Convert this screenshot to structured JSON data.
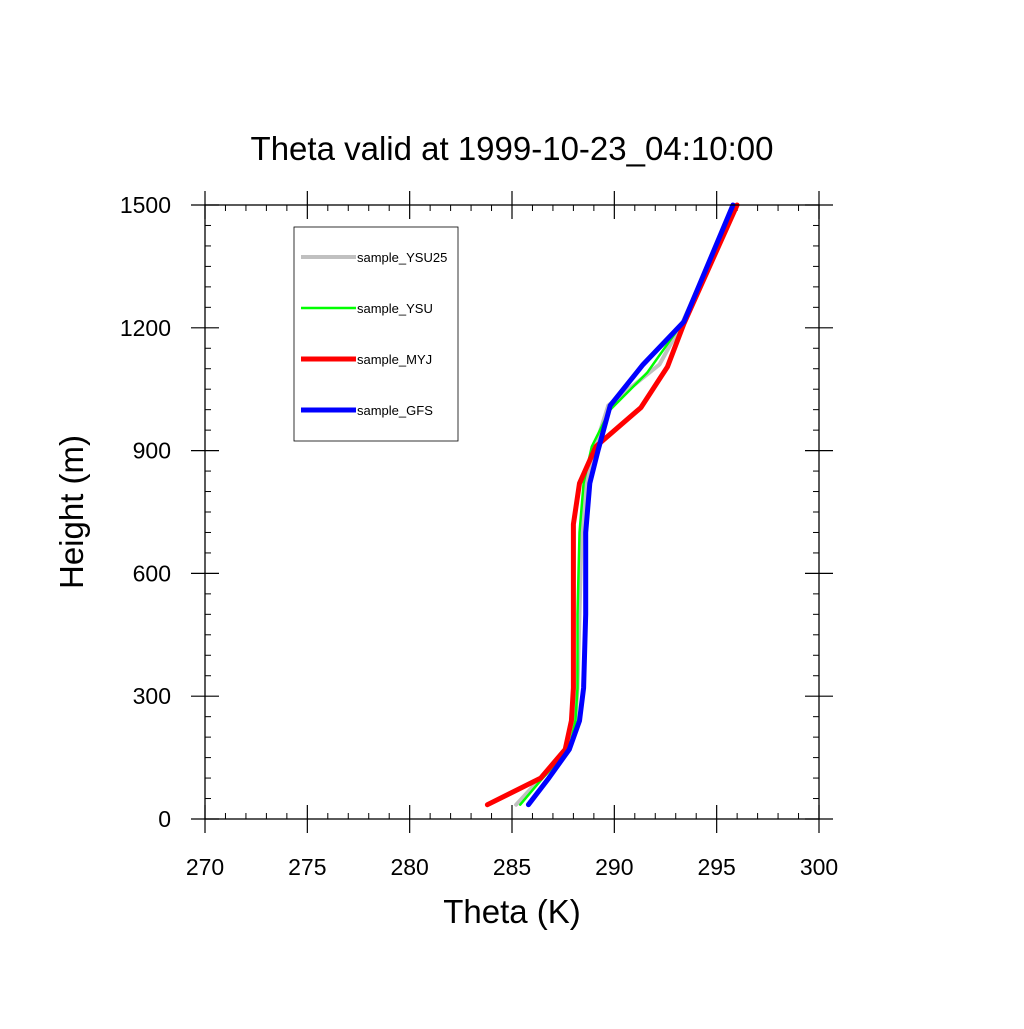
{
  "chart_data": {
    "type": "line",
    "title": "Theta valid at 1999-10-23_04:10:00",
    "xlabel": "Theta (K)",
    "ylabel": "Height (m)",
    "xlim": [
      270,
      300
    ],
    "ylim": [
      0,
      1500
    ],
    "x_ticks": [
      270,
      275,
      280,
      285,
      290,
      295,
      300
    ],
    "x_tick_labels": [
      "270",
      "275",
      "280",
      "285",
      "290",
      "295",
      "300"
    ],
    "y_ticks": [
      0,
      300,
      600,
      900,
      1200,
      1500
    ],
    "y_tick_labels": [
      "0",
      "300",
      "600",
      "900",
      "1200",
      "1500"
    ],
    "x_minor_step": 1,
    "y_minor_step": 50,
    "grid": false,
    "legend_position": "top-left",
    "series": [
      {
        "name": "sample_YSU25",
        "color": "#c0c0c0",
        "line_width": 4,
        "points": [
          [
            285.2,
            35
          ],
          [
            286.4,
            100
          ],
          [
            287.8,
            170
          ],
          [
            288.1,
            240
          ],
          [
            288.2,
            320
          ],
          [
            288.3,
            500
          ],
          [
            288.4,
            700
          ],
          [
            288.6,
            820
          ],
          [
            289.0,
            900
          ],
          [
            289.7,
            1010
          ],
          [
            292.2,
            1110
          ],
          [
            293.3,
            1210
          ],
          [
            295.9,
            1500
          ]
        ]
      },
      {
        "name": "sample_YSU",
        "color": "#00ff00",
        "line_width": 2.5,
        "points": [
          [
            285.4,
            35
          ],
          [
            286.5,
            100
          ],
          [
            287.8,
            170
          ],
          [
            288.1,
            240
          ],
          [
            288.2,
            320
          ],
          [
            288.2,
            500
          ],
          [
            288.3,
            700
          ],
          [
            288.5,
            820
          ],
          [
            288.9,
            910
          ],
          [
            289.8,
            1000
          ],
          [
            291.6,
            1090
          ],
          [
            293.3,
            1210
          ],
          [
            295.9,
            1500
          ]
        ]
      },
      {
        "name": "sample_MYJ",
        "color": "#ff0000",
        "line_width": 5,
        "points": [
          [
            283.8,
            35
          ],
          [
            286.4,
            100
          ],
          [
            287.6,
            170
          ],
          [
            287.9,
            240
          ],
          [
            288.0,
            320
          ],
          [
            288.0,
            500
          ],
          [
            288.0,
            720
          ],
          [
            288.3,
            820
          ],
          [
            289.1,
            910
          ],
          [
            291.3,
            1005
          ],
          [
            292.6,
            1105
          ],
          [
            293.4,
            1210
          ],
          [
            296.0,
            1500
          ]
        ]
      },
      {
        "name": "sample_GFS",
        "color": "#0000ff",
        "line_width": 5,
        "points": [
          [
            285.8,
            35
          ],
          [
            286.8,
            100
          ],
          [
            287.8,
            170
          ],
          [
            288.3,
            240
          ],
          [
            288.5,
            320
          ],
          [
            288.6,
            500
          ],
          [
            288.6,
            700
          ],
          [
            288.8,
            820
          ],
          [
            289.2,
            900
          ],
          [
            289.8,
            1010
          ],
          [
            291.4,
            1110
          ],
          [
            293.4,
            1215
          ],
          [
            295.8,
            1500
          ]
        ]
      }
    ]
  }
}
